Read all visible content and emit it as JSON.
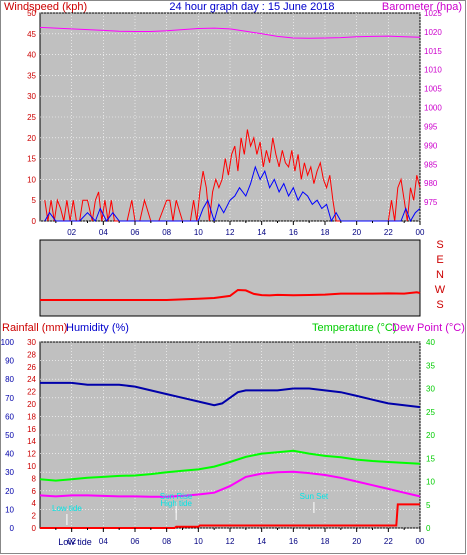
{
  "header": {
    "wind_label": "Windspeed (kph)",
    "title": "24 hour graph day : 15 June 2018",
    "baro_label": "Barometer (hpa)"
  },
  "lower_header": {
    "rain_label": "Rainfall (mm)",
    "hum_label": "Humidity (%)",
    "temp_label": "Temperature (°C)",
    "dew_label": "Dew Point (°C)"
  },
  "colors": {
    "wind_gust": "#ff0000",
    "wind_avg": "#0000ff",
    "barometer": "#ff00ff",
    "direction": "#ff0000",
    "humidity": "#0000aa",
    "temperature": "#00ff00",
    "dewpoint": "#ff00ff",
    "rainfall": "#ff0000",
    "events": "#00e5e5",
    "plot_bg": "#c0c0c0"
  },
  "x_ticks": [
    "02",
    "04",
    "06",
    "08",
    "10",
    "12",
    "14",
    "16",
    "18",
    "20",
    "22",
    "00"
  ],
  "chart_data": [
    {
      "type": "line",
      "title": "24 hour graph day : 15 June 2018",
      "xlabel": "",
      "ylabel": "Windspeed (kph)",
      "y2label": "Barometer (hpa)",
      "x_range": [
        0,
        24
      ],
      "ylim": [
        0,
        50
      ],
      "y_ticks": [
        0,
        5,
        10,
        15,
        20,
        25,
        30,
        35,
        40,
        45,
        50
      ],
      "y2lim": [
        970,
        1025
      ],
      "y2_ticks": [
        975,
        980,
        985,
        990,
        995,
        1000,
        1005,
        1010,
        1015,
        1020,
        1025
      ],
      "grid": true,
      "series": [
        {
          "name": "Windspeed (kph)",
          "role": "gust",
          "x": [
            0.3,
            0.5,
            0.7,
            0.9,
            1.1,
            1.3,
            1.5,
            1.7,
            1.9,
            2.1,
            2.3,
            2.5,
            2.7,
            3.0,
            3.3,
            3.5,
            3.7,
            3.9,
            4.1,
            4.3,
            4.5,
            4.7,
            5.0,
            5.5,
            5.8,
            6.0,
            6.3,
            6.6,
            7.0,
            7.5,
            8.0,
            8.2,
            8.4,
            8.6,
            9.0,
            9.5,
            9.7,
            9.9,
            10.1,
            10.3,
            10.5,
            10.7,
            10.9,
            11.1,
            11.3,
            11.5,
            11.7,
            11.9,
            12.1,
            12.3,
            12.5,
            12.7,
            12.9,
            13.1,
            13.3,
            13.5,
            13.7,
            13.9,
            14.1,
            14.3,
            14.5,
            14.7,
            14.9,
            15.1,
            15.3,
            15.5,
            15.7,
            15.9,
            16.1,
            16.3,
            16.5,
            16.7,
            16.9,
            17.1,
            17.3,
            17.5,
            17.7,
            17.9,
            18.1,
            18.3,
            18.5,
            18.7,
            19.0,
            19.5,
            20.0,
            20.5,
            21.0,
            21.5,
            22.0,
            22.2,
            22.4,
            22.6,
            22.8,
            23.0,
            23.2,
            23.4,
            23.6,
            23.8,
            24.0
          ],
          "values": [
            5,
            0,
            5,
            0,
            5,
            3,
            0,
            5,
            0,
            5,
            0,
            0,
            5,
            5,
            0,
            5,
            7,
            0,
            5,
            0,
            5,
            0,
            0,
            0,
            5,
            0,
            0,
            5,
            0,
            0,
            5,
            5,
            0,
            5,
            0,
            0,
            5,
            0,
            7,
            12,
            8,
            0,
            7,
            10,
            8,
            10,
            15,
            11,
            16,
            18,
            12,
            20,
            16,
            22,
            18,
            20,
            16,
            19,
            13,
            17,
            14,
            20,
            16,
            13,
            17,
            14,
            13,
            17,
            12,
            16,
            10,
            14,
            11,
            13,
            9,
            12,
            14,
            10,
            8,
            11,
            5,
            0,
            0,
            0,
            0,
            0,
            0,
            0,
            0,
            5,
            0,
            8,
            10,
            5,
            0,
            8,
            5,
            11,
            8
          ]
        },
        {
          "name": "Windspeed (kph)",
          "role": "average",
          "x": [
            0.3,
            0.6,
            1.0,
            1.5,
            2.0,
            2.5,
            3.0,
            3.5,
            3.8,
            4.2,
            4.6,
            5.0,
            6.0,
            6.5,
            7.0,
            8.0,
            8.5,
            9.0,
            10.0,
            10.3,
            10.6,
            11.0,
            11.3,
            11.6,
            12.0,
            12.3,
            12.6,
            13.0,
            13.3,
            13.6,
            13.9,
            14.2,
            14.5,
            14.8,
            15.1,
            15.4,
            15.7,
            16.0,
            16.3,
            16.6,
            16.9,
            17.2,
            17.5,
            17.8,
            18.1,
            18.4,
            18.7,
            19.0,
            20.0,
            21.0,
            22.0,
            22.5,
            22.8,
            23.1,
            23.4,
            23.7,
            24.0
          ],
          "values": [
            0,
            2,
            0,
            0,
            0,
            0,
            2,
            0,
            3,
            0,
            2,
            0,
            0,
            0,
            0,
            0,
            0,
            0,
            0,
            3,
            5,
            0,
            4,
            2,
            5,
            6,
            8,
            6,
            9,
            13,
            10,
            12,
            8,
            10,
            7,
            9,
            6,
            8,
            5,
            7,
            6,
            4,
            5,
            3,
            4,
            0,
            2,
            0,
            0,
            0,
            0,
            0,
            0,
            3,
            0,
            2,
            3
          ]
        },
        {
          "name": "Barometer (hpa)",
          "axis": "right",
          "x": [
            0,
            1,
            2,
            3,
            4,
            5,
            6,
            7,
            8,
            9,
            10,
            11,
            12,
            13,
            14,
            15,
            16,
            17,
            18,
            19,
            20,
            21,
            22,
            23,
            24
          ],
          "values": [
            1021.2,
            1021.0,
            1020.8,
            1020.6,
            1020.4,
            1020.2,
            1020.1,
            1020.1,
            1020.3,
            1020.6,
            1020.9,
            1021.0,
            1020.8,
            1020.2,
            1019.5,
            1018.8,
            1018.4,
            1018.3,
            1018.4,
            1018.5,
            1018.7,
            1018.8,
            1018.9,
            1018.7,
            1018.6
          ]
        }
      ]
    },
    {
      "type": "line",
      "title": "",
      "ylabel": "",
      "y_ticks": [
        "S",
        "E",
        "N",
        "W",
        "S"
      ],
      "ylim": [
        0,
        360
      ],
      "x_range": [
        0,
        24
      ],
      "grid": false,
      "series": [
        {
          "name": "",
          "x": [
            0,
            2,
            4,
            6,
            8,
            9,
            10,
            11,
            12,
            12.5,
            13,
            13.5,
            14,
            14.5,
            15,
            16,
            17,
            18,
            19,
            20,
            21,
            22,
            23,
            23.8,
            24
          ],
          "values": [
            0,
            0,
            0,
            0,
            0,
            5,
            10,
            16,
            32,
            78,
            75,
            48,
            38,
            36,
            40,
            37,
            39,
            42,
            50,
            50,
            50,
            52,
            50,
            60,
            55
          ]
        }
      ]
    },
    {
      "type": "line",
      "title": "",
      "xlabel": "",
      "ylabel": "Rainfall (mm)",
      "y_ticks": [
        0,
        2,
        4,
        6,
        8,
        10,
        12,
        14,
        16,
        18,
        20,
        22,
        24,
        26,
        28,
        30
      ],
      "ylim": [
        0,
        30
      ],
      "y_ticks_humidity": [
        0,
        10,
        20,
        30,
        40,
        50,
        60,
        70,
        80,
        90,
        100
      ],
      "y2label": "Temperature (°C)Dew Point (°C)",
      "y2lim": [
        0,
        40
      ],
      "y2_ticks": [
        0,
        5,
        10,
        15,
        20,
        25,
        30,
        35,
        40
      ],
      "x_range": [
        0,
        24
      ],
      "grid": true,
      "series": [
        {
          "name": "Humidity (%)",
          "axis": "humidity",
          "x": [
            0,
            1,
            2,
            3,
            4,
            5,
            6,
            7,
            8,
            9,
            10,
            10.5,
            11,
            11.5,
            12,
            12.5,
            13,
            14,
            15,
            16,
            17,
            18,
            19,
            20,
            21,
            22,
            23,
            24
          ],
          "values": [
            78,
            78,
            78,
            77,
            77,
            77,
            76,
            74,
            72,
            70,
            68,
            67,
            66,
            67,
            70,
            73,
            74,
            74,
            74,
            75,
            75,
            74,
            73,
            71,
            69,
            67,
            66,
            65
          ]
        },
        {
          "name": "Temperature (°C)",
          "axis": "right",
          "x": [
            0,
            1,
            2,
            3,
            4,
            5,
            6,
            7,
            8,
            9,
            10,
            11,
            12,
            13,
            14,
            15,
            16,
            17,
            18,
            19,
            20,
            21,
            22,
            23,
            24
          ],
          "values": [
            10.5,
            10.2,
            10.5,
            10.8,
            11.0,
            11.2,
            11.3,
            11.6,
            12.0,
            12.3,
            12.6,
            13.2,
            14.2,
            15.3,
            16.0,
            16.3,
            16.6,
            16.0,
            15.5,
            15.2,
            14.7,
            14.4,
            14.2,
            14.0,
            13.8
          ]
        },
        {
          "name": "Dew Point (°C)",
          "axis": "right",
          "x": [
            0,
            1,
            2,
            3,
            4,
            5,
            6,
            7,
            8,
            9,
            10,
            11,
            12,
            12.5,
            13,
            14,
            15,
            16,
            17,
            18,
            19,
            20,
            21,
            22,
            23,
            24
          ],
          "values": [
            7.0,
            6.8,
            7.0,
            7.0,
            6.9,
            6.8,
            6.8,
            6.7,
            6.7,
            6.9,
            7.2,
            7.6,
            9.0,
            10.0,
            11.0,
            11.7,
            12.0,
            12.1,
            11.8,
            11.4,
            10.8,
            10.0,
            9.2,
            8.4,
            7.6,
            6.8
          ]
        },
        {
          "name": "Rainfall (mm)",
          "axis": "left",
          "x": [
            0,
            8.5,
            8.6,
            10,
            10.1,
            22.5,
            22.6,
            24
          ],
          "values": [
            0,
            0,
            0.2,
            0.2,
            0.4,
            0.4,
            3.8,
            3.8
          ]
        }
      ],
      "annotations": [
        {
          "label": "Low tide",
          "x": 1.7,
          "text": "Low tide"
        },
        {
          "label": "Sun Rise",
          "x": 8.6,
          "text": "Sun Rise"
        },
        {
          "label": "High tide",
          "x": 8.6,
          "text": "High tide"
        },
        {
          "label": "Sun Set",
          "x": 17.3,
          "text": "Sun Set"
        }
      ],
      "bottom_label": "Low tide"
    }
  ]
}
